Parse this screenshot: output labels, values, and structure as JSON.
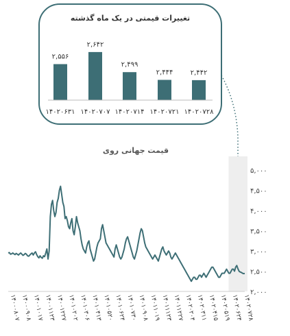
{
  "chart_data": [
    {
      "type": "bar",
      "title": "تغییرات قیمتی در یک ماه گذشته",
      "categories": [
        "۱۴۰۲۰۶۳۱",
        "۱۴۰۲۰۷۰۷",
        "۱۴۰۲۰۷۱۴",
        "۱۴۰۲۰۷۲۱",
        "۱۴۰۲۰۷۲۸"
      ],
      "values": [
        2556,
        2642,
        2499,
        2444,
        2442
      ],
      "value_labels": [
        "۲,۵۵۶",
        "۲,۶۴۲",
        "۲,۴۹۹",
        "۲,۴۴۴",
        "۲,۴۴۲"
      ],
      "ylim": [
        2300,
        2700
      ],
      "color": "#3d6e75"
    },
    {
      "type": "line",
      "title": "قیمت جهانی روی",
      "ylim": [
        2000,
        5000
      ],
      "y_ticks": [
        {
          "value": 5000,
          "label": "۵,۰۰۰"
        },
        {
          "value": 4500,
          "label": "۴,۵۰۰"
        },
        {
          "value": 4000,
          "label": "۴,۰۰۰"
        },
        {
          "value": 3500,
          "label": "۳,۵۰۰"
        },
        {
          "value": 3000,
          "label": "۳,۰۰۰"
        },
        {
          "value": 2500,
          "label": "۲,۵۰۰"
        },
        {
          "value": 2000,
          "label": "۲,۰۰۰"
        }
      ],
      "x_labels": [
        "۱۴۰۰۰۸۰۷",
        "۱۴۰۰۰۹۰۸",
        "۱۴۰۰۱۰۱۷",
        "۱۴۰۰۱۱۲۳",
        "۱۴۰۰۱۲۲۷",
        "۱۴۰۱۰۲۰۲",
        "۱۴۰۱۰۳۰۶",
        "۱۴۰۱۰۴۱۳",
        "۱۴۰۱۰۵۲۰",
        "۱۴۰۱۰۶۲۴",
        "۱۴۰۱۰۷۳۰",
        "۱۴۰۱۰۹۰۸",
        "۱۴۰۱۱۰۱۹",
        "۱۴۰۱۱۱۲۳",
        "۱۴۰۱۱۲۲۷",
        "۱۴۰۲۰۲۰۴",
        "۱۴۰۲۰۳۱۱",
        "۱۴۰۲۰۴۱۵",
        "۱۴۰۲۰۵۱۹",
        "۱۴۰۲۰۶۲۴",
        "۱۴۰۲۰۷۲۸"
      ],
      "values": [
        2950,
        2960,
        2920,
        2930,
        2950,
        2930,
        2910,
        2940,
        2920,
        2900,
        2930,
        2950,
        2920,
        2890,
        2910,
        2940,
        2920,
        2880,
        2870,
        2900,
        2930,
        2950,
        2900,
        2950,
        2980,
        2910,
        2860,
        2830,
        2880,
        2840,
        2820,
        2880,
        2860,
        2950,
        3050,
        2800,
        3000,
        3850,
        4150,
        4250,
        4000,
        3850,
        3950,
        4200,
        4300,
        4500,
        4600,
        4400,
        4200,
        4100,
        3800,
        3850,
        3750,
        3600,
        3550,
        3700,
        3800,
        3500,
        3400,
        3600,
        3850,
        3700,
        3600,
        3500,
        3300,
        3150,
        3050,
        3000,
        2950,
        3100,
        3200,
        3250,
        3050,
        2950,
        2850,
        2750,
        2800,
        2950,
        3100,
        3200,
        3250,
        3300,
        3550,
        3650,
        3500,
        3350,
        3200,
        3150,
        3100,
        3050,
        3000,
        2950,
        2900,
        2850,
        3050,
        3150,
        3050,
        2950,
        2850,
        2800,
        2850,
        2950,
        3050,
        3200,
        3300,
        3350,
        3250,
        3150,
        3050,
        2950,
        2850,
        2800,
        2900,
        3000,
        3150,
        3300,
        3450,
        3550,
        3500,
        3350,
        3200,
        3100,
        3050,
        3000,
        2950,
        2900,
        2850,
        2800,
        2850,
        2900,
        2850,
        2800,
        2750,
        2850,
        2950,
        3050,
        3100,
        3000,
        2950,
        2900,
        2950,
        3000,
        2950,
        2850,
        2800,
        2850,
        2900,
        2950,
        2900,
        2850,
        2800,
        2750,
        2700,
        2650,
        2600,
        2550,
        2500,
        2450,
        2400,
        2350,
        2300,
        2250,
        2300,
        2350,
        2350,
        2300,
        2300,
        2350,
        2400,
        2400,
        2350,
        2400,
        2450,
        2400,
        2350,
        2400,
        2450,
        2500,
        2550,
        2600,
        2600,
        2550,
        2500,
        2450,
        2400,
        2350,
        2350,
        2400,
        2450,
        2450,
        2450,
        2500,
        2550,
        2500,
        2450,
        2450,
        2500,
        2550,
        2550,
        2500,
        2600,
        2640,
        2560,
        2500,
        2480,
        2470,
        2450,
        2440,
        2442
      ],
      "shaded_last_points": 16,
      "color": "#3d6e75"
    }
  ]
}
